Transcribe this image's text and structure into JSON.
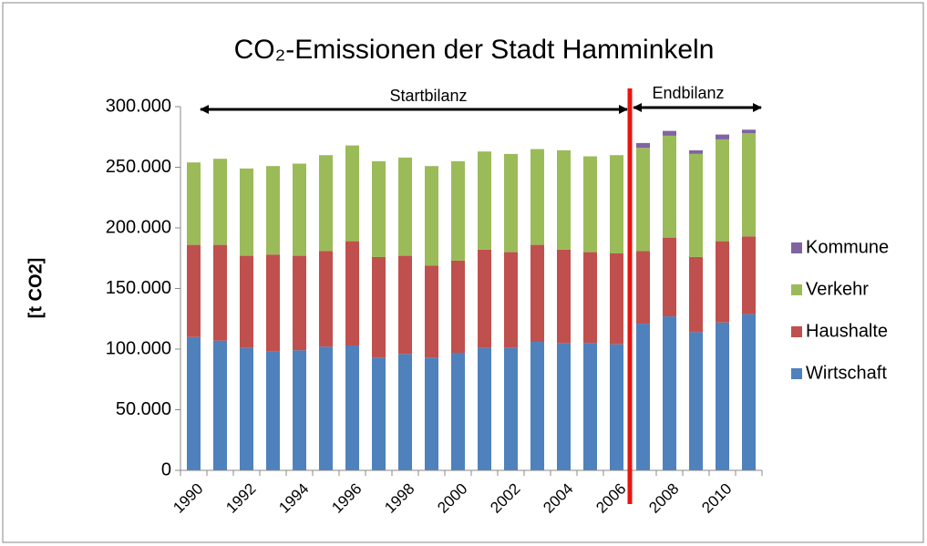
{
  "chart_data": {
    "type": "stacked_bar",
    "title": "CO₂-Emissionen der Stadt Hamminkeln",
    "y_label": "[t CO2]",
    "annotations": [
      "Startbilanz",
      "Endbilanz"
    ],
    "categories": [
      "1990",
      null,
      "1992",
      null,
      "1994",
      null,
      "1996",
      null,
      "1998",
      null,
      "2000",
      null,
      "2002",
      null,
      "2004",
      null,
      "2006",
      null,
      "2008",
      null,
      "2010",
      null
    ],
    "series": [
      {
        "name": "Wirtschaft",
        "color": "#4f81bd",
        "values": [
          110000,
          107000,
          101000,
          98000,
          99000,
          102000,
          103000,
          93000,
          96000,
          93000,
          97000,
          101000,
          101000,
          106000,
          105000,
          105000,
          104000,
          121000,
          127000,
          114000,
          122000,
          129000
        ]
      },
      {
        "name": "Haushalte",
        "color": "#c0504d",
        "values": [
          76000,
          79000,
          76000,
          80000,
          78000,
          79000,
          86000,
          83000,
          81000,
          76000,
          76000,
          81000,
          79000,
          80000,
          77000,
          75000,
          75000,
          60000,
          65000,
          62000,
          67000,
          64000
        ]
      },
      {
        "name": "Verkehr",
        "color": "#9bbb59",
        "values": [
          68000,
          71000,
          72000,
          73000,
          76000,
          79000,
          79000,
          79000,
          81000,
          82000,
          82000,
          81000,
          81000,
          79000,
          82000,
          79000,
          81000,
          85000,
          84000,
          85000,
          84000,
          85000
        ]
      },
      {
        "name": "Kommune",
        "color": "#8064a2",
        "values": [
          null,
          null,
          null,
          null,
          null,
          null,
          null,
          null,
          null,
          null,
          null,
          null,
          null,
          null,
          null,
          null,
          null,
          4000,
          4000,
          3000,
          4000,
          3000
        ]
      }
    ],
    "ylim": [
      0,
      300000
    ],
    "yticks": [
      0,
      {
        "value": 50000,
        "label": "50.000"
      },
      {
        "value": 100000,
        "label": "100.000"
      },
      {
        "value": 150000,
        "label": "150.000"
      },
      {
        "value": 200000,
        "label": "200.000"
      },
      {
        "value": 250000,
        "label": "250.000"
      },
      {
        "value": 300000,
        "label": "300.000"
      }
    ],
    "grid": false,
    "legend": "right"
  }
}
